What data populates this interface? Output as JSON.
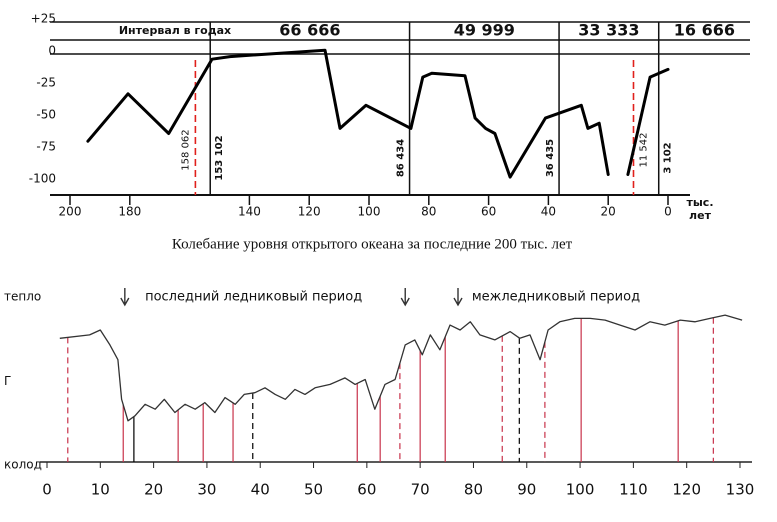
{
  "chart_data": [
    {
      "type": "line",
      "title": "Колебание уровня открытого океана за последние 200 тыс. лет",
      "interval_label": "Интервал в годах",
      "intervals": [
        "66 666",
        "49 999",
        "33 333",
        "16 666"
      ],
      "boundaries": [
        {
          "value": 153.102,
          "label": "153 102"
        },
        {
          "value": 86.434,
          "label": "86 434"
        },
        {
          "value": 36.435,
          "label": "36 435"
        },
        {
          "value": 3.102,
          "label": "3 102"
        }
      ],
      "red_markers": [
        {
          "value": 158.062,
          "label": "158 062"
        },
        {
          "value": 11.542,
          "label": "11 542"
        }
      ],
      "marker_color": "#e0201c",
      "x_label": [
        "тыс.",
        "лет"
      ],
      "x": [
        194,
        180.6,
        167,
        152.5,
        146.5,
        114.7,
        109.7,
        101,
        86,
        82,
        79,
        67.9,
        64.5,
        61,
        57.9,
        52.8,
        41,
        29,
        26.8,
        23,
        20,
        16,
        13.4,
        6,
        0
      ],
      "values": [
        -68,
        -31,
        -62,
        -4,
        -2,
        3,
        -58,
        -40,
        -58,
        -18,
        -15,
        -17,
        -50,
        -58,
        -62,
        -96,
        -50,
        -40,
        -58,
        -54,
        -94,
        null,
        -94,
        -18,
        -12
      ],
      "color": "#000000",
      "xlim": [
        200,
        0
      ],
      "ylim": [
        -110,
        25
      ],
      "xticks": [
        200,
        180,
        140,
        120,
        100,
        80,
        60,
        40,
        20,
        0
      ],
      "yticks": [
        {
          "value": 25,
          "label": "+25"
        },
        0,
        -25,
        -50,
        -75,
        -100
      ]
    },
    {
      "type": "line",
      "y_labels": [
        "тепло",
        "Г",
        "колод"
      ],
      "annotations": [
        {
          "text": "последний ледниковый период",
          "x": 18.4
        },
        {
          "text": "межледниковый период",
          "x": 79.7
        }
      ],
      "arrows": [
        14.6,
        67.2,
        77.1
      ],
      "x": [
        2.4,
        8,
        10,
        11.8,
        13.3,
        14,
        15.2,
        16.5,
        18.4,
        20.3,
        22,
        24,
        25.9,
        27.8,
        29.6,
        31.5,
        33.4,
        35.3,
        37,
        39,
        40.9,
        42.8,
        44.7,
        46.5,
        48.4,
        50.3,
        53.1,
        55.9,
        57.8,
        59.7,
        61.5,
        63.4,
        65.3,
        67.2,
        69,
        70.4,
        71.9,
        73.7,
        75.6,
        77.5,
        79.4,
        81.2,
        84,
        86.9,
        88.7,
        90.6,
        92.5,
        94,
        96.2,
        99,
        101.9,
        104.7,
        107.5,
        110.3,
        113.1,
        115.9,
        118.8,
        121.6,
        124.4,
        127.2,
        130.4
      ],
      "values": [
        75,
        77,
        80,
        71,
        62,
        38,
        25,
        28,
        35,
        32,
        38,
        30,
        35,
        32,
        36,
        30,
        39,
        35,
        41,
        42,
        45,
        41,
        38,
        44,
        41,
        45,
        47,
        51,
        47,
        50,
        32,
        47,
        50,
        71,
        74,
        65,
        77,
        68,
        83,
        80,
        85,
        77,
        74,
        79,
        75,
        77,
        62,
        80,
        85,
        87,
        87,
        86,
        83,
        80,
        85,
        83,
        86,
        85,
        87,
        89,
        86
      ],
      "color": "#333333",
      "markers": [
        {
          "x": 3.9,
          "color": "#c8324a",
          "style": "dashed"
        },
        {
          "x": 14.3,
          "color": "#c8324a",
          "style": "solid"
        },
        {
          "x": 16.3,
          "color": "#000000",
          "style": "solid"
        },
        {
          "x": 24.6,
          "color": "#c8324a",
          "style": "solid"
        },
        {
          "x": 29.3,
          "color": "#c8324a",
          "style": "solid"
        },
        {
          "x": 34.9,
          "color": "#c8324a",
          "style": "solid"
        },
        {
          "x": 38.6,
          "color": "#000000",
          "style": "dashed"
        },
        {
          "x": 58.2,
          "color": "#c8324a",
          "style": "solid"
        },
        {
          "x": 62.5,
          "color": "#c8324a",
          "style": "solid"
        },
        {
          "x": 66.2,
          "color": "#c8324a",
          "style": "dashed"
        },
        {
          "x": 70,
          "color": "#c8324a",
          "style": "solid"
        },
        {
          "x": 74.7,
          "color": "#c8324a",
          "style": "solid"
        },
        {
          "x": 85.4,
          "color": "#c8324a",
          "style": "dashed"
        },
        {
          "x": 88.6,
          "color": "#000000",
          "style": "dashed"
        },
        {
          "x": 93.4,
          "color": "#c8324a",
          "style": "dashed"
        },
        {
          "x": 100.2,
          "color": "#c8324a",
          "style": "solid"
        },
        {
          "x": 118.4,
          "color": "#c8324a",
          "style": "solid"
        },
        {
          "x": 125,
          "color": "#c8324a",
          "style": "dashed"
        }
      ],
      "xlim": [
        0,
        130
      ],
      "ylim": [
        0,
        100
      ],
      "xticks": [
        0,
        10,
        20,
        30,
        40,
        50,
        60,
        70,
        80,
        90,
        100,
        110,
        120,
        130
      ]
    }
  ]
}
